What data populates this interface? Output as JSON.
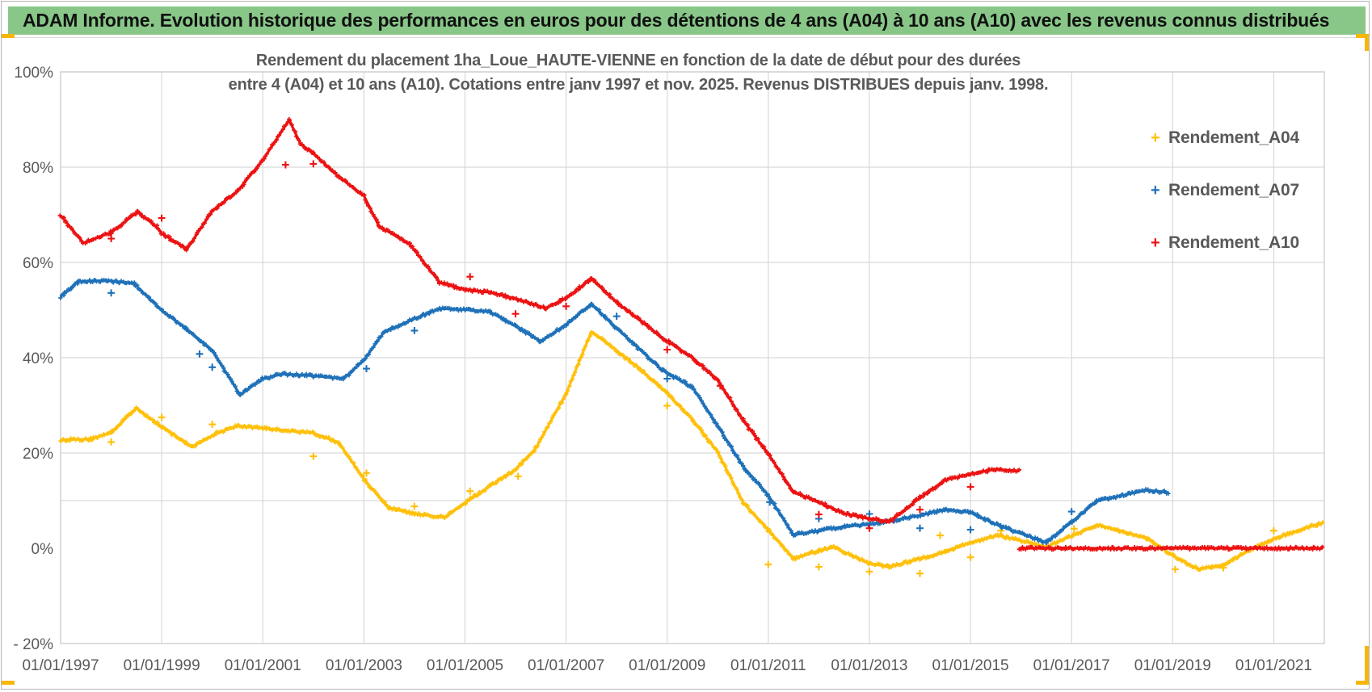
{
  "header": {
    "title": "ADAM Informe. Evolution historique des performances en euros pour des détentions de 4 ans (A04) à 10 ans (A10) avec les revenus connus distribués",
    "bg_color": "#88c788",
    "text_color": "#111111"
  },
  "accents": {
    "corner_color": "#f6b70a",
    "page_border_color": "#b5b5b5"
  },
  "chart_data": {
    "type": "scatter",
    "title_line1": "Rendement du placement 1ha_Loue_HAUTE-VIENNE en fonction de la date de début pour des durées",
    "title_line2": "entre 4 (A04) et 10 ans (A10). Cotations entre janv 1997 et nov. 2025. Revenus DISTRIBUES depuis janv. 1998.",
    "grid_color": "#d9d9d9",
    "plot_border_color": "#c9c9c9",
    "x_axis": {
      "min": 1997,
      "max": 2022,
      "ticks": [
        {
          "year": 1997,
          "label": "01/01/1997"
        },
        {
          "year": 1999,
          "label": "01/01/1999"
        },
        {
          "year": 2001,
          "label": "01/01/2001"
        },
        {
          "year": 2003,
          "label": "01/01/2003"
        },
        {
          "year": 2005,
          "label": "01/01/2005"
        },
        {
          "year": 2007,
          "label": "01/01/2007"
        },
        {
          "year": 2009,
          "label": "01/01/2009"
        },
        {
          "year": 2011,
          "label": "01/01/2011"
        },
        {
          "year": 2013,
          "label": "01/01/2013"
        },
        {
          "year": 2015,
          "label": "01/01/2015"
        },
        {
          "year": 2017,
          "label": "01/01/2017"
        },
        {
          "year": 2019,
          "label": "01/01/2019"
        },
        {
          "year": 2021,
          "label": "01/01/2021"
        }
      ]
    },
    "y_axis": {
      "min": -20,
      "max": 100,
      "labels": [
        {
          "text": "100%",
          "value": 100
        },
        {
          "text": "80%",
          "value": 80
        },
        {
          "text": "60%",
          "value": 60
        },
        {
          "text": "40%",
          "value": 40
        },
        {
          "text": "20%",
          "value": 20
        },
        {
          "text": "0%",
          "value": 0
        },
        {
          "text": "- 20%",
          "value": -20
        }
      ],
      "gridline_values": [
        100,
        80,
        60,
        40,
        20,
        10
      ]
    },
    "legend": [
      {
        "label": "Rendement_A04",
        "color": "#ffc00a"
      },
      {
        "label": "Rendement_A07",
        "color": "#1e71b8"
      },
      {
        "label": "Rendement_A10",
        "color": "#ec1212"
      }
    ],
    "series": [
      {
        "name": "Rendement_A04",
        "color": "#ffc00a",
        "segments": [
          [
            [
              1997.0,
              22.8
            ],
            [
              1997.6,
              22.9
            ],
            [
              1998.0,
              24.3
            ],
            [
              1998.5,
              29.4
            ],
            [
              1999.0,
              25.5
            ],
            [
              1999.6,
              21.3
            ],
            [
              2000.1,
              24.2
            ],
            [
              2000.5,
              25.7
            ],
            [
              2001.0,
              25.2
            ],
            [
              2001.5,
              24.7
            ],
            [
              2002.0,
              24.2
            ],
            [
              2002.5,
              22.2
            ],
            [
              2003.0,
              14.5
            ],
            [
              2003.5,
              8.4
            ],
            [
              2004.0,
              7.3
            ],
            [
              2004.6,
              6.4
            ],
            [
              2005.0,
              9.6
            ],
            [
              2005.5,
              13.1
            ],
            [
              2006.0,
              16.5
            ],
            [
              2006.4,
              21.0
            ],
            [
              2007.0,
              32.5
            ],
            [
              2007.5,
              45.5
            ],
            [
              2008.0,
              41.5
            ],
            [
              2008.5,
              37.3
            ],
            [
              2009.0,
              32.5
            ],
            [
              2009.5,
              27.0
            ],
            [
              2010.0,
              20.2
            ],
            [
              2010.5,
              9.6
            ],
            [
              2011.0,
              3.9
            ],
            [
              2011.5,
              -2.2
            ],
            [
              2012.0,
              -0.5
            ],
            [
              2012.3,
              0.2
            ],
            [
              2013.0,
              -3.2
            ],
            [
              2013.4,
              -3.9
            ],
            [
              2014.0,
              -2.2
            ],
            [
              2014.5,
              -0.8
            ],
            [
              2015.0,
              1.2
            ],
            [
              2015.55,
              2.7
            ],
            [
              2016.5,
              0.3
            ],
            [
              2017.5,
              4.9
            ],
            [
              2018.0,
              3.6
            ],
            [
              2018.5,
              2.0
            ],
            [
              2019.0,
              -1.5
            ],
            [
              2019.5,
              -4.4
            ],
            [
              2020.0,
              -3.5
            ],
            [
              2020.5,
              -0.5
            ],
            [
              2021.0,
              2.0
            ],
            [
              2021.5,
              3.8
            ],
            [
              2021.97,
              5.4
            ]
          ]
        ],
        "outliers": [
          [
            1998.0,
            22.3
          ],
          [
            1999.0,
            27.5
          ],
          [
            2000.0,
            26.0
          ],
          [
            2002.0,
            19.3
          ],
          [
            2003.05,
            15.8
          ],
          [
            2004.0,
            8.8
          ],
          [
            2005.1,
            12.0
          ],
          [
            2006.05,
            15.1
          ],
          [
            2009.0,
            29.9
          ],
          [
            2011.0,
            -3.4
          ],
          [
            2012.0,
            -3.9
          ],
          [
            2013.0,
            -4.9
          ],
          [
            2014.0,
            -5.3
          ],
          [
            2014.4,
            2.7
          ],
          [
            2015.0,
            -1.9
          ],
          [
            2015.6,
            3.7
          ],
          [
            2017.05,
            4.1
          ],
          [
            2019.05,
            -4.4
          ],
          [
            2020.0,
            -4.1
          ],
          [
            2021.0,
            3.7
          ]
        ]
      },
      {
        "name": "Rendement_A07",
        "color": "#1e71b8",
        "segments": [
          [
            [
              1997.0,
              52.8
            ],
            [
              1997.35,
              56.0
            ],
            [
              1997.9,
              56.2
            ],
            [
              1998.45,
              55.6
            ],
            [
              1999.0,
              49.9
            ],
            [
              1999.5,
              46.0
            ],
            [
              2000.0,
              41.5
            ],
            [
              2000.55,
              32.2
            ],
            [
              2001.0,
              35.6
            ],
            [
              2001.4,
              36.6
            ],
            [
              2002.0,
              36.2
            ],
            [
              2002.6,
              35.6
            ],
            [
              2003.0,
              39.5
            ],
            [
              2003.4,
              45.4
            ],
            [
              2004.0,
              48.2
            ],
            [
              2004.5,
              50.3
            ],
            [
              2005.0,
              50.1
            ],
            [
              2005.5,
              49.6
            ],
            [
              2006.0,
              46.6
            ],
            [
              2006.5,
              43.4
            ],
            [
              2007.0,
              47.0
            ],
            [
              2007.5,
              51.3
            ],
            [
              2008.0,
              46.2
            ],
            [
              2008.9,
              37.4
            ],
            [
              2009.5,
              33.8
            ],
            [
              2010.0,
              25.7
            ],
            [
              2010.5,
              17.2
            ],
            [
              2011.0,
              11.1
            ],
            [
              2011.5,
              2.8
            ],
            [
              2012.0,
              3.7
            ],
            [
              2012.5,
              4.6
            ],
            [
              2013.0,
              5.0
            ],
            [
              2013.5,
              5.9
            ],
            [
              2014.0,
              6.9
            ],
            [
              2014.5,
              8.2
            ],
            [
              2015.0,
              7.5
            ],
            [
              2015.6,
              4.6
            ],
            [
              2016.5,
              1.2
            ],
            [
              2017.0,
              5.5
            ],
            [
              2017.5,
              9.9
            ],
            [
              2018.0,
              11.1
            ],
            [
              2018.5,
              12.2
            ],
            [
              2018.92,
              11.7
            ]
          ]
        ],
        "outliers": [
          [
            1998.0,
            53.6
          ],
          [
            1999.75,
            40.8
          ],
          [
            2000.0,
            38.0
          ],
          [
            2003.05,
            37.7
          ],
          [
            2004.0,
            45.7
          ],
          [
            2008.0,
            48.7
          ],
          [
            2009.0,
            35.6
          ],
          [
            2011.03,
            9.7
          ],
          [
            2012.0,
            6.2
          ],
          [
            2013.0,
            7.2
          ],
          [
            2014.0,
            4.2
          ],
          [
            2015.0,
            3.9
          ],
          [
            2017.0,
            7.7
          ]
        ]
      },
      {
        "name": "Rendement_A10",
        "color": "#ec1212",
        "segments": [
          [
            [
              1997.0,
              69.9
            ],
            [
              1997.45,
              64.1
            ],
            [
              1998.0,
              66.3
            ],
            [
              1998.52,
              70.6
            ],
            [
              1998.9,
              67.5
            ],
            [
              1999.0,
              66.1
            ],
            [
              1999.5,
              62.8
            ],
            [
              2000.0,
              70.8
            ],
            [
              2000.5,
              75.0
            ],
            [
              2001.0,
              81.5
            ],
            [
              2001.52,
              89.9
            ],
            [
              2001.75,
              84.8
            ],
            [
              2002.0,
              82.9
            ],
            [
              2002.5,
              78.0
            ],
            [
              2003.0,
              74.0
            ],
            [
              2003.3,
              67.6
            ],
            [
              2003.9,
              63.9
            ],
            [
              2004.5,
              55.8
            ],
            [
              2005.0,
              54.3
            ],
            [
              2005.5,
              53.7
            ],
            [
              2006.0,
              52.4
            ],
            [
              2006.6,
              50.4
            ],
            [
              2007.0,
              52.5
            ],
            [
              2007.5,
              56.6
            ],
            [
              2008.0,
              51.6
            ],
            [
              2008.9,
              44.2
            ],
            [
              2009.5,
              40.0
            ],
            [
              2010.0,
              35.3
            ],
            [
              2010.5,
              26.9
            ],
            [
              2011.0,
              19.8
            ],
            [
              2011.5,
              11.8
            ],
            [
              2012.0,
              9.7
            ],
            [
              2012.5,
              7.3
            ],
            [
              2013.0,
              6.2
            ],
            [
              2013.4,
              5.6
            ],
            [
              2014.0,
              10.6
            ],
            [
              2014.5,
              14.3
            ],
            [
              2015.0,
              15.6
            ],
            [
              2015.5,
              16.6
            ],
            [
              2015.96,
              16.2
            ]
          ],
          [
            [
              2015.96,
              0.0
            ],
            [
              2021.97,
              0.0
            ]
          ]
        ],
        "outliers": [
          [
            1998.0,
            65.0
          ],
          [
            1999.0,
            69.3
          ],
          [
            2001.45,
            80.5
          ],
          [
            2002.0,
            80.7
          ],
          [
            2005.1,
            57.0
          ],
          [
            2006.0,
            49.2
          ],
          [
            2007.0,
            50.8
          ],
          [
            2009.0,
            41.7
          ],
          [
            2010.05,
            34.1
          ],
          [
            2012.0,
            7.1
          ],
          [
            2013.0,
            4.2
          ],
          [
            2014.0,
            8.1
          ],
          [
            2015.0,
            12.9
          ]
        ]
      }
    ]
  }
}
